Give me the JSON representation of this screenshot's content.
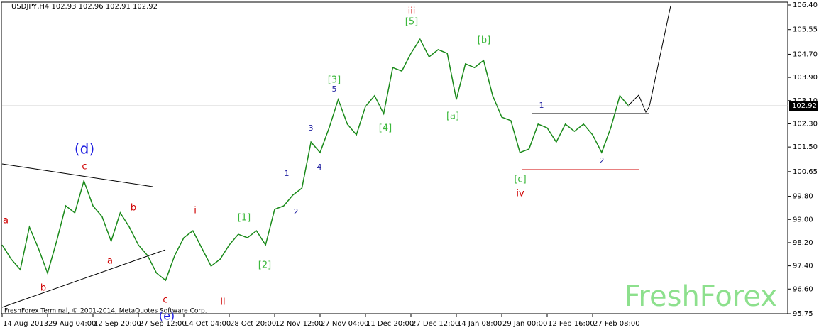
{
  "chart_data": {
    "type": "line",
    "title": "USDJPY,H4  102.93 102.96 102.91 102.92",
    "footer": "FreshForex Terminal, © 2001-2014, MetaQuotes Software Corp.",
    "watermark": "FreshForex",
    "categories": [
      "14 Aug 2013",
      null,
      null,
      null,
      null,
      "29 Aug 04:00",
      null,
      null,
      null,
      null,
      "12 Sep 20:00",
      null,
      null,
      null,
      null,
      "27 Sep 12:00",
      null,
      null,
      null,
      null,
      "14 Oct 04:00",
      null,
      null,
      null,
      null,
      "28 Oct 20:00",
      null,
      null,
      null,
      null,
      "12 Nov 12:00",
      null,
      null,
      null,
      null,
      "27 Nov 04:00",
      null,
      null,
      null,
      null,
      "11 Dec 20:00",
      null,
      null,
      null,
      null,
      "27 Dec 12:00",
      null,
      null,
      null,
      null,
      "14 Jan 08:00",
      null,
      null,
      null,
      null,
      "29 Jan 00:00",
      null,
      null,
      null,
      null,
      "12 Feb 16:00",
      null,
      null,
      null,
      null,
      "27 Feb 08:00",
      null,
      null,
      null,
      null
    ],
    "series": [
      {
        "color": "#1a8a1a",
        "values": [
          98.12,
          97.63,
          97.27,
          98.74,
          98.0,
          97.15,
          98.25,
          99.47,
          99.23,
          100.33,
          99.47,
          99.1,
          98.25,
          99.23,
          98.74,
          98.12,
          97.76,
          97.15,
          96.9,
          97.76,
          98.37,
          98.61,
          98.0,
          97.39,
          97.63,
          98.12,
          98.49,
          98.37,
          98.61,
          98.12,
          99.35,
          99.47,
          99.84,
          100.08,
          101.67,
          101.31,
          102.16,
          103.14,
          102.29,
          101.92,
          102.9,
          103.27,
          102.65,
          104.24,
          104.12,
          104.73,
          105.22,
          104.61,
          104.86,
          104.73,
          103.14,
          104.37,
          104.24,
          104.49,
          103.27,
          102.53,
          102.41,
          101.31,
          101.43,
          102.29,
          102.16,
          101.67,
          102.29,
          102.04,
          102.29,
          101.92,
          101.31,
          102.16,
          103.27,
          102.9
        ]
      }
    ],
    "current_price": 102.92,
    "ylim": [
      95.75,
      106.4
    ],
    "yticks": [
      {
        "value": 106.4,
        "label": "106.40"
      },
      105.55,
      {
        "value": 104.7,
        "label": "104.70"
      },
      {
        "value": 103.9,
        "label": "103.90"
      },
      {
        "value": 103.1,
        "label": "103.10"
      },
      {
        "value": 102.3,
        "label": "102.30"
      },
      {
        "value": 101.5,
        "label": "101.50"
      },
      100.65,
      {
        "value": 99.8,
        "label": "99.80"
      },
      {
        "value": 99.0,
        "label": "99.00"
      },
      {
        "value": 98.2,
        "label": "98.20"
      },
      {
        "value": 97.4,
        "label": "97.40"
      },
      {
        "value": 96.6,
        "label": "96.60"
      },
      95.75
    ],
    "annotations": [
      {
        "text": "(d)",
        "color": "#1f1fe0"
      },
      {
        "text": "c",
        "color": "#d00000"
      },
      {
        "text": "a",
        "color": "#d00000"
      },
      {
        "text": "b",
        "color": "#d00000"
      },
      {
        "text": "a",
        "color": "#d00000"
      },
      {
        "text": "b",
        "color": "#d00000"
      },
      {
        "text": "c",
        "color": "#d00000"
      },
      {
        "text": "(e)",
        "color": "#1f1fe0"
      },
      {
        "text": "i",
        "color": "#d00000"
      },
      {
        "text": "ii",
        "color": "#d00000"
      },
      {
        "text": "[1]",
        "color": "#3cb83c"
      },
      {
        "text": "[2]",
        "color": "#3cb83c"
      },
      {
        "text": "1",
        "color": "#1f1fa0"
      },
      {
        "text": "2",
        "color": "#1f1fa0"
      },
      {
        "text": "3",
        "color": "#1f1fa0"
      },
      {
        "text": "4",
        "color": "#1f1fa0"
      },
      {
        "text": "5",
        "color": "#1f1fa0"
      },
      {
        "text": "[3]",
        "color": "#3cb83c"
      },
      {
        "text": "[4]",
        "color": "#3cb83c"
      },
      {
        "text": "iii",
        "color": "#d00000"
      },
      {
        "text": "[5]",
        "color": "#3cb83c"
      },
      {
        "text": "[a]",
        "color": "#3cb83c"
      },
      {
        "text": "[b]",
        "color": "#3cb83c"
      },
      {
        "text": "[c]",
        "color": "#3cb83c"
      },
      {
        "text": "iv",
        "color": "#d00000"
      },
      {
        "text": "1",
        "color": "#1f1fa0"
      },
      {
        "text": "2",
        "color": "#1f1fa0"
      }
    ]
  }
}
